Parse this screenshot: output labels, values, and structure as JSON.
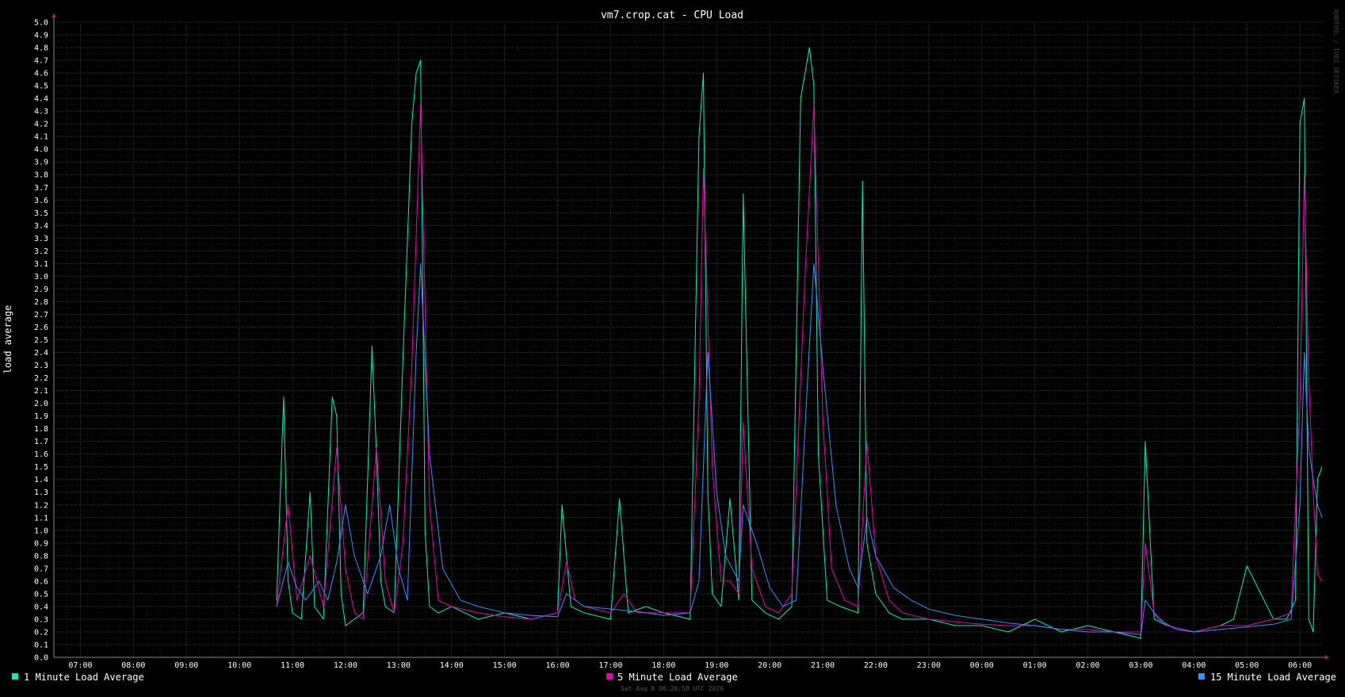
{
  "chart_data": {
    "type": "line",
    "title": "vm7.crop.cat - CPU Load",
    "ylabel": "load average",
    "xlabel": "",
    "ylim": [
      0,
      5.0
    ],
    "y_ticks": [
      "0.0",
      "0.1",
      "0.2",
      "0.3",
      "0.4",
      "0.5",
      "0.6",
      "0.7",
      "0.8",
      "0.9",
      "1.0",
      "1.1",
      "1.2",
      "1.3",
      "1.4",
      "1.5",
      "1.6",
      "1.7",
      "1.8",
      "1.9",
      "2.0",
      "2.1",
      "2.2",
      "2.3",
      "2.4",
      "2.5",
      "2.6",
      "2.7",
      "2.8",
      "2.9",
      "3.0",
      "3.1",
      "3.2",
      "3.3",
      "3.4",
      "3.5",
      "3.6",
      "3.7",
      "3.8",
      "3.9",
      "4.0",
      "4.1",
      "4.2",
      "4.3",
      "4.4",
      "4.5",
      "4.6",
      "4.7",
      "4.8",
      "4.9",
      "5.0"
    ],
    "x_ticks": [
      "07:00",
      "08:00",
      "09:00",
      "10:00",
      "11:00",
      "12:00",
      "13:00",
      "14:00",
      "15:00",
      "16:00",
      "17:00",
      "18:00",
      "19:00",
      "20:00",
      "21:00",
      "22:00",
      "23:00",
      "00:00",
      "01:00",
      "02:00",
      "03:00",
      "04:00",
      "05:00",
      "06:00"
    ],
    "xlim": [
      "06:30",
      "06:25 (+1d)"
    ],
    "grid": true,
    "legend_position": "bottom",
    "timestamp": "Sat Aug  8 06:20:58 UTC 2026",
    "watermark": "RRDTOOL / TOBI OETIKER",
    "series": [
      {
        "name": "1 Minute Load Average",
        "color": "#00eeb4",
        "x": [
          "10:42",
          "10:50",
          "10:55",
          "11:00",
          "11:10",
          "11:20",
          "11:25",
          "11:35",
          "11:45",
          "11:50",
          "11:55",
          "12:00",
          "12:10",
          "12:20",
          "12:30",
          "12:35",
          "12:40",
          "12:45",
          "12:55",
          "13:05",
          "13:15",
          "13:20",
          "13:25",
          "13:30",
          "13:35",
          "13:45",
          "14:00",
          "14:15",
          "14:30",
          "15:00",
          "15:30",
          "16:00",
          "16:05",
          "16:15",
          "16:30",
          "17:00",
          "17:10",
          "17:20",
          "17:40",
          "18:00",
          "18:30",
          "18:40",
          "18:45",
          "18:50",
          "18:55",
          "19:05",
          "19:15",
          "19:25",
          "19:30",
          "19:40",
          "19:55",
          "20:10",
          "20:25",
          "20:35",
          "20:45",
          "20:50",
          "20:55",
          "21:05",
          "21:20",
          "21:40",
          "21:45",
          "21:50",
          "22:00",
          "22:15",
          "22:30",
          "23:00",
          "23:30",
          "00:00",
          "00:30",
          "01:00",
          "01:30",
          "02:00",
          "02:30",
          "03:00",
          "03:05",
          "03:15",
          "03:30",
          "04:00",
          "04:30",
          "04:45",
          "05:00",
          "05:30",
          "05:45",
          "05:55",
          "06:00",
          "06:05",
          "06:10",
          "06:15",
          "06:20",
          "06:25"
        ],
        "values": [
          0.45,
          2.05,
          0.6,
          0.35,
          0.3,
          1.3,
          0.4,
          0.3,
          2.05,
          1.9,
          0.5,
          0.25,
          0.3,
          0.35,
          2.45,
          1.6,
          0.6,
          0.4,
          0.35,
          2.35,
          4.2,
          4.6,
          4.7,
          1.0,
          0.4,
          0.35,
          0.4,
          0.35,
          0.3,
          0.35,
          0.3,
          0.35,
          1.2,
          0.4,
          0.35,
          0.3,
          1.25,
          0.35,
          0.4,
          0.35,
          0.3,
          4.1,
          4.6,
          1.3,
          0.5,
          0.4,
          1.25,
          0.45,
          3.65,
          0.45,
          0.35,
          0.3,
          0.4,
          4.4,
          4.8,
          4.5,
          1.6,
          0.45,
          0.4,
          0.35,
          3.75,
          0.9,
          0.5,
          0.35,
          0.3,
          0.3,
          0.25,
          0.25,
          0.2,
          0.3,
          0.2,
          0.25,
          0.2,
          0.15,
          1.7,
          0.3,
          0.25,
          0.2,
          0.25,
          0.3,
          0.72,
          0.3,
          0.3,
          0.45,
          4.2,
          4.4,
          0.3,
          0.2,
          1.4,
          1.5
        ]
      },
      {
        "name": "5 Minute Load Average",
        "color": "#e300b0",
        "x": [
          "10:42",
          "10:55",
          "11:05",
          "11:20",
          "11:35",
          "11:50",
          "12:00",
          "12:10",
          "12:20",
          "12:35",
          "12:45",
          "12:55",
          "13:05",
          "13:15",
          "13:25",
          "13:35",
          "13:45",
          "14:00",
          "14:30",
          "15:00",
          "15:30",
          "16:00",
          "16:10",
          "16:20",
          "16:30",
          "17:00",
          "17:15",
          "17:30",
          "18:00",
          "18:30",
          "18:40",
          "18:45",
          "18:55",
          "19:05",
          "19:15",
          "19:25",
          "19:30",
          "19:40",
          "19:55",
          "20:10",
          "20:25",
          "20:40",
          "20:50",
          "21:00",
          "21:10",
          "21:25",
          "21:40",
          "21:50",
          "22:00",
          "22:15",
          "22:30",
          "23:00",
          "23:30",
          "00:00",
          "00:30",
          "01:00",
          "01:30",
          "02:00",
          "02:30",
          "03:00",
          "03:05",
          "03:15",
          "03:30",
          "04:00",
          "04:30",
          "05:00",
          "05:30",
          "05:50",
          "06:00",
          "06:05",
          "06:10",
          "06:15",
          "06:20",
          "06:25"
        ],
        "values": [
          0.4,
          1.2,
          0.45,
          0.8,
          0.4,
          1.65,
          0.7,
          0.35,
          0.3,
          1.65,
          0.6,
          0.35,
          0.9,
          2.3,
          4.35,
          1.2,
          0.45,
          0.4,
          0.35,
          0.32,
          0.3,
          0.35,
          0.75,
          0.45,
          0.4,
          0.35,
          0.5,
          0.35,
          0.35,
          0.35,
          2.0,
          3.85,
          1.5,
          0.6,
          0.6,
          0.5,
          1.85,
          0.7,
          0.4,
          0.35,
          0.5,
          3.0,
          4.35,
          1.9,
          0.7,
          0.45,
          0.4,
          1.7,
          0.8,
          0.45,
          0.35,
          0.3,
          0.28,
          0.26,
          0.25,
          0.25,
          0.22,
          0.22,
          0.2,
          0.2,
          0.9,
          0.35,
          0.25,
          0.2,
          0.25,
          0.25,
          0.3,
          0.35,
          2.0,
          3.8,
          2.2,
          1.3,
          0.65,
          0.6
        ]
      },
      {
        "name": "15 Minute Load Average",
        "color": "#3b8dff",
        "x": [
          "10:42",
          "10:55",
          "11:05",
          "11:15",
          "11:30",
          "11:40",
          "11:50",
          "12:00",
          "12:10",
          "12:25",
          "12:40",
          "12:50",
          "13:00",
          "13:10",
          "13:20",
          "13:25",
          "13:35",
          "13:50",
          "14:10",
          "14:30",
          "15:00",
          "15:30",
          "16:00",
          "16:10",
          "16:30",
          "17:00",
          "17:30",
          "18:00",
          "18:30",
          "18:40",
          "18:50",
          "19:00",
          "19:10",
          "19:25",
          "19:30",
          "19:45",
          "20:00",
          "20:15",
          "20:30",
          "20:40",
          "20:50",
          "21:00",
          "21:15",
          "21:30",
          "21:40",
          "21:50",
          "22:00",
          "22:20",
          "22:40",
          "23:00",
          "23:30",
          "00:00",
          "00:30",
          "01:00",
          "01:30",
          "02:00",
          "02:30",
          "03:00",
          "03:05",
          "03:20",
          "03:40",
          "04:00",
          "04:30",
          "05:00",
          "05:30",
          "05:50",
          "06:00",
          "06:05",
          "06:10",
          "06:15",
          "06:20",
          "06:25"
        ],
        "values": [
          0.4,
          0.75,
          0.55,
          0.45,
          0.6,
          0.45,
          0.75,
          1.2,
          0.8,
          0.5,
          0.8,
          1.2,
          0.7,
          0.45,
          2.4,
          3.1,
          1.6,
          0.7,
          0.45,
          0.4,
          0.35,
          0.33,
          0.32,
          0.5,
          0.4,
          0.38,
          0.36,
          0.33,
          0.35,
          0.6,
          2.4,
          1.3,
          0.8,
          0.6,
          1.2,
          0.9,
          0.55,
          0.4,
          0.45,
          1.8,
          3.1,
          2.3,
          1.2,
          0.7,
          0.55,
          1.1,
          0.8,
          0.55,
          0.45,
          0.38,
          0.33,
          0.3,
          0.27,
          0.25,
          0.22,
          0.2,
          0.2,
          0.18,
          0.45,
          0.3,
          0.22,
          0.2,
          0.22,
          0.24,
          0.26,
          0.3,
          1.2,
          2.4,
          1.65,
          1.4,
          1.2,
          1.1
        ]
      }
    ]
  }
}
